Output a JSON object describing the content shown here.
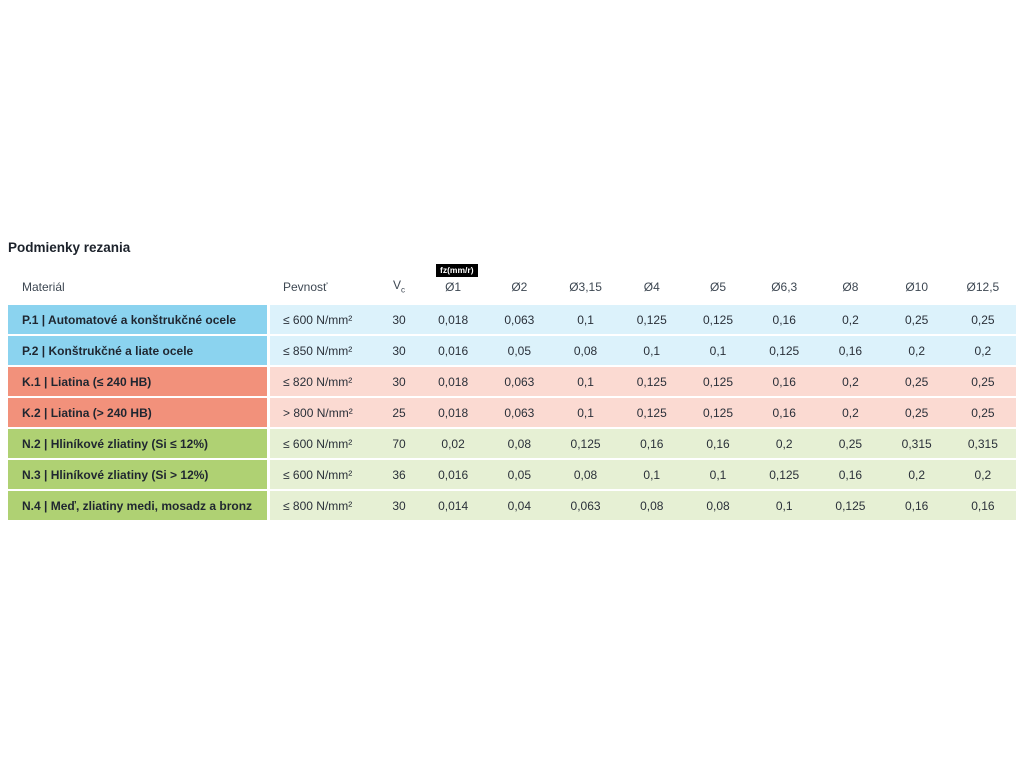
{
  "section": {
    "title": "Podmienky rezania"
  },
  "table": {
    "fz_badge": "fz(mm/r)",
    "headers": {
      "material": "Materiál",
      "strength": "Pevnosť",
      "vc_label": "V",
      "vc_sub": "c",
      "diameters": [
        "Ø1",
        "Ø2",
        "Ø3,15",
        "Ø4",
        "Ø5",
        "Ø6,3",
        "Ø8",
        "Ø10",
        "Ø12,5"
      ]
    },
    "groups": {
      "blue": {
        "dark": "#8bd3ef",
        "light": "#dcf2fb"
      },
      "salmon": {
        "dark": "#f2917b",
        "light": "#fbdad2"
      },
      "green": {
        "dark": "#afd173",
        "light": "#e6f0d4"
      }
    },
    "rows": [
      {
        "group": "blue",
        "material": "P.1 | Automatové a konštrukčné ocele",
        "strength": "≤ 600 N/mm²",
        "vc": "30",
        "values": [
          "0,018",
          "0,063",
          "0,1",
          "0,125",
          "0,125",
          "0,16",
          "0,2",
          "0,25",
          "0,25"
        ]
      },
      {
        "group": "blue",
        "material": "P.2 | Konštrukčné a liate ocele",
        "strength": "≤ 850 N/mm²",
        "vc": "30",
        "values": [
          "0,016",
          "0,05",
          "0,08",
          "0,1",
          "0,1",
          "0,125",
          "0,16",
          "0,2",
          "0,2"
        ]
      },
      {
        "group": "salmon",
        "material": "K.1 | Liatina (≤ 240 HB)",
        "strength": "≤ 820 N/mm²",
        "vc": "30",
        "values": [
          "0,018",
          "0,063",
          "0,1",
          "0,125",
          "0,125",
          "0,16",
          "0,2",
          "0,25",
          "0,25"
        ]
      },
      {
        "group": "salmon",
        "material": "K.2 | Liatina (> 240 HB)",
        "strength": "> 800 N/mm²",
        "vc": "25",
        "values": [
          "0,018",
          "0,063",
          "0,1",
          "0,125",
          "0,125",
          "0,16",
          "0,2",
          "0,25",
          "0,25"
        ]
      },
      {
        "group": "green",
        "material": "N.2 | Hliníkové zliatiny (Si ≤ 12%)",
        "strength": "≤ 600 N/mm²",
        "vc": "70",
        "values": [
          "0,02",
          "0,08",
          "0,125",
          "0,16",
          "0,16",
          "0,2",
          "0,25",
          "0,315",
          "0,315"
        ]
      },
      {
        "group": "green",
        "material": "N.3 | Hliníkové zliatiny (Si > 12%)",
        "strength": "≤ 600 N/mm²",
        "vc": "36",
        "values": [
          "0,016",
          "0,05",
          "0,08",
          "0,1",
          "0,1",
          "0,125",
          "0,16",
          "0,2",
          "0,2"
        ]
      },
      {
        "group": "green",
        "material": "N.4 | Meď, zliatiny medi, mosadz a bronz",
        "strength": "≤ 800 N/mm²",
        "vc": "30",
        "values": [
          "0,014",
          "0,04",
          "0,063",
          "0,08",
          "0,08",
          "0,1",
          "0,125",
          "0,16",
          "0,16"
        ]
      }
    ]
  }
}
